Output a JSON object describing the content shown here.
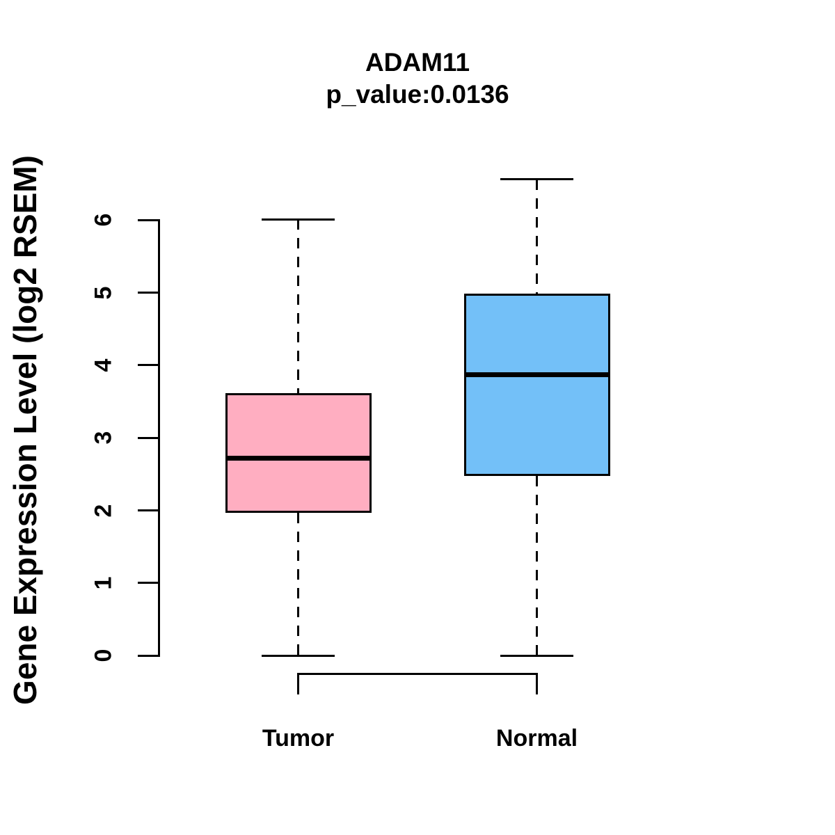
{
  "chart_data": {
    "type": "boxplot",
    "title": "ADAM11",
    "subtitle": "p_value:0.0136",
    "ylabel": "Gene Expression Level (log2 RSEM)",
    "xlabel": "",
    "ylim": [
      0,
      6.6
    ],
    "yticks": [
      "0",
      "1",
      "2",
      "3",
      "4",
      "5",
      "6"
    ],
    "grid": false,
    "legend_position": "none",
    "categories": [
      "Tumor",
      "Normal"
    ],
    "series": [
      {
        "name": "Tumor",
        "fill_color": "#FFAEC1",
        "whisker_low": 0.0,
        "q1": 1.98,
        "median": 2.72,
        "q3": 3.6,
        "whisker_high": 6.01
      },
      {
        "name": "Normal",
        "fill_color": "#73C0F8",
        "whisker_low": 0.0,
        "q1": 2.49,
        "median": 3.87,
        "q3": 4.97,
        "whisker_high": 6.56
      }
    ],
    "stroke_color": "#000000",
    "background_color": "#FFFFFF"
  }
}
